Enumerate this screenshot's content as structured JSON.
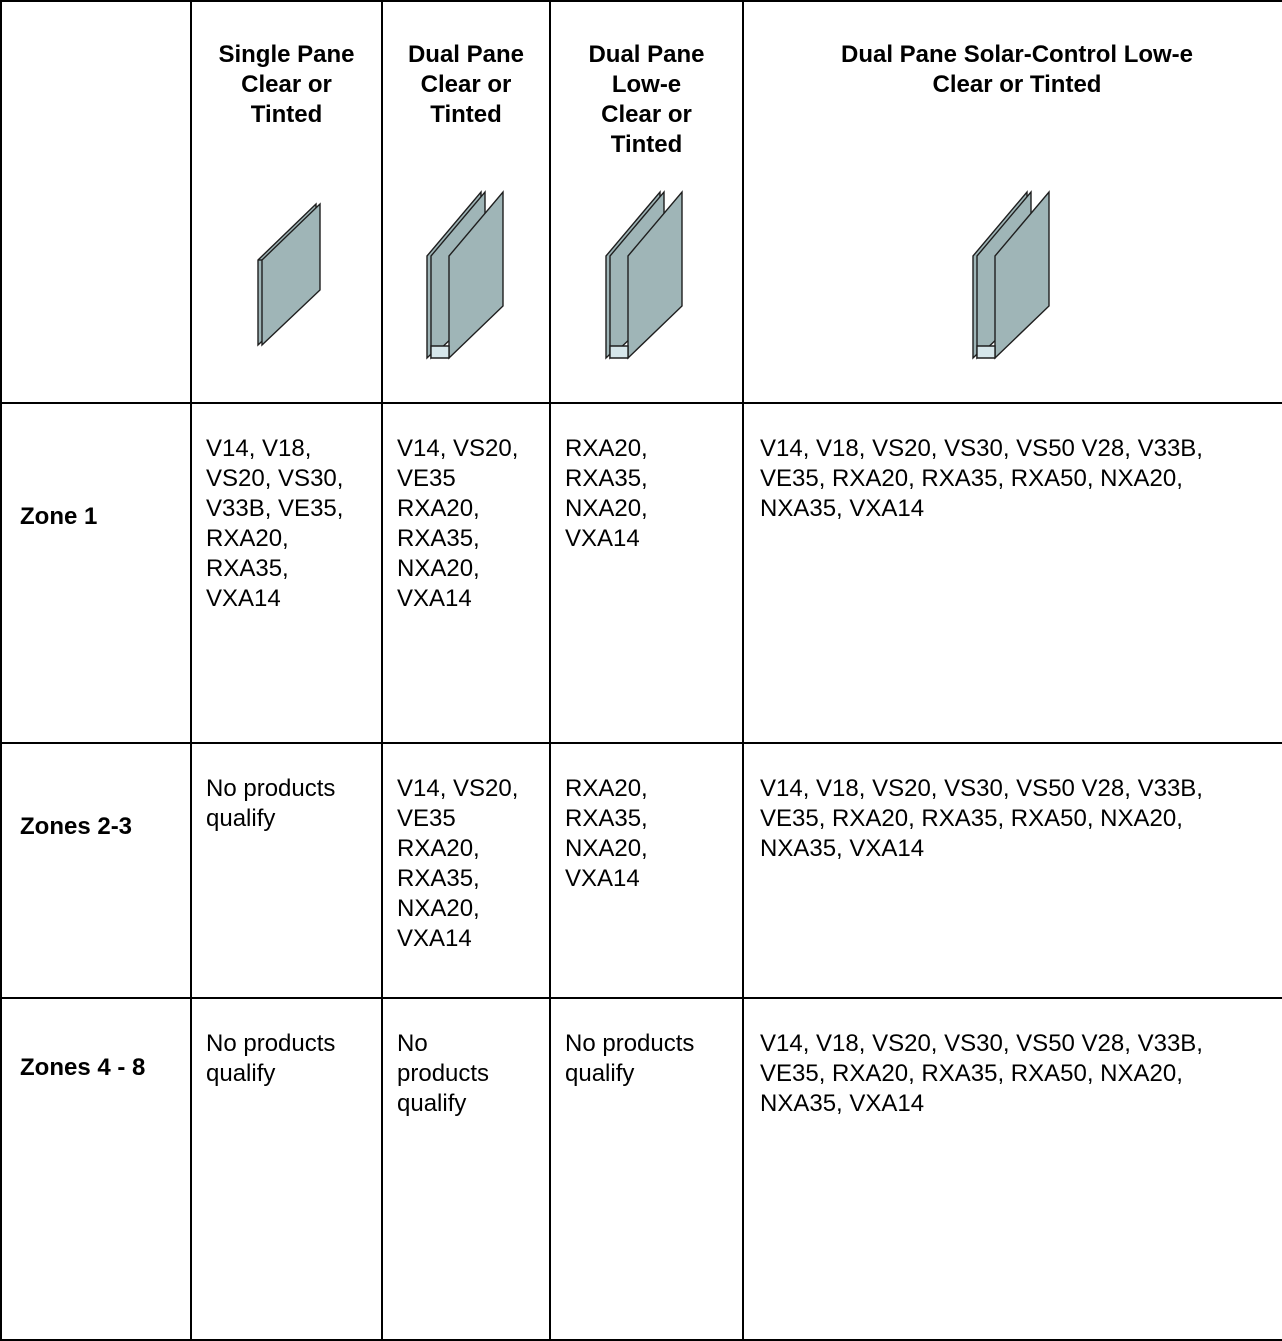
{
  "table": {
    "headers": [
      "",
      "Single Pane\nClear or\nTinted",
      "Dual Pane\nClear or\nTinted",
      "Dual Pane\nLow-e\nClear or\nTinted",
      "Dual Pane Solar-Control Low-e\nClear or Tinted"
    ],
    "icons": [
      "single-pane-glass-icon",
      "dual-pane-glass-icon",
      "dual-pane-glass-icon",
      "dual-pane-glass-icon"
    ],
    "glass_color": "#9fb5b7",
    "rows": [
      {
        "zone": "Zone 1",
        "single_clear": "V14, V18,\nVS20, VS30,\nV33B, VE35,\nRXA20,\nRXA35,\nVXA14",
        "dual_clear": "V14, VS20,\nVE35\nRXA20,\nRXA35,\nNXA20,\nVXA14",
        "dual_lowe": "RXA20,\nRXA35,\nNXA20,\nVXA14",
        "dual_solar": "V14, V18, VS20, VS30, VS50 V28, V33B,\nVE35, RXA20, RXA35, RXA50, NXA20,\nNXA35, VXA14"
      },
      {
        "zone": "Zones 2-3",
        "single_clear": "No products\nqualify",
        "dual_clear": "V14, VS20,\nVE35\nRXA20,\nRXA35,\nNXA20,\nVXA14",
        "dual_lowe": "RXA20,\nRXA35,\nNXA20,\nVXA14",
        "dual_solar": "V14, V18, VS20, VS30, VS50 V28, V33B,\nVE35, RXA20, RXA35, RXA50, NXA20,\nNXA35, VXA14"
      },
      {
        "zone": "Zones 4 - 8",
        "single_clear": "No products\nqualify",
        "dual_clear": "No\nproducts\nqualify",
        "dual_lowe": "No products\nqualify",
        "dual_solar": "V14, V18, VS20, VS30, VS50 V28, V33B,\nVE35, RXA20, RXA35, RXA50, NXA20,\nNXA35, VXA14"
      }
    ]
  }
}
